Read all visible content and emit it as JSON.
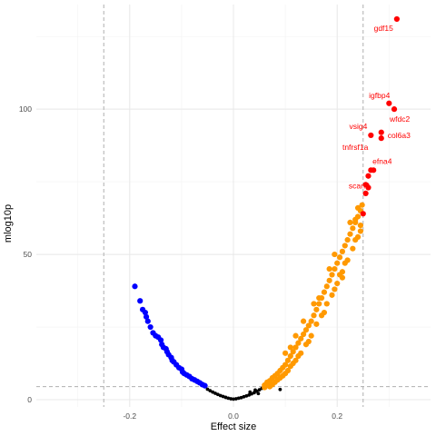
{
  "colors": {
    "neutral": "#000000",
    "down": "#0000ff",
    "up": "#ff9900",
    "top": "#ff0000",
    "grid_major": "#e8e8e8",
    "grid_minor": "#f3f3f3",
    "threshold": "#b0b0b0"
  },
  "chart_data": {
    "type": "scatter",
    "title": "",
    "xlabel": "Effect size",
    "ylabel": "mlog10p",
    "xlim": [
      -0.38,
      0.38
    ],
    "ylim": [
      -2.5,
      136
    ],
    "x_ticks": [
      -0.2,
      0.0,
      0.2
    ],
    "x_tick_labels": [
      "-0.2",
      "0.0",
      "0.2"
    ],
    "y_ticks": [
      0,
      50,
      100
    ],
    "y_tick_labels": [
      "0",
      "50",
      "100"
    ],
    "grid": true,
    "legend": "none",
    "thresholds": {
      "x": [
        -0.25,
        0.25
      ],
      "y": [
        4.5
      ]
    },
    "groups": [
      {
        "name": "down",
        "color_key": "down",
        "points": [
          [
            -0.19,
            39
          ],
          [
            -0.18,
            34
          ],
          [
            -0.175,
            31
          ],
          [
            -0.17,
            30
          ],
          [
            -0.168,
            28.5
          ],
          [
            -0.165,
            27
          ],
          [
            -0.16,
            25
          ],
          [
            -0.155,
            23
          ],
          [
            -0.15,
            22
          ],
          [
            -0.145,
            21.5
          ],
          [
            -0.14,
            20.5
          ],
          [
            -0.138,
            19
          ],
          [
            -0.135,
            18
          ],
          [
            -0.13,
            17.5
          ],
          [
            -0.128,
            16.5
          ],
          [
            -0.125,
            15.5
          ],
          [
            -0.12,
            14.5
          ],
          [
            -0.118,
            13.5
          ],
          [
            -0.115,
            13
          ],
          [
            -0.11,
            12
          ],
          [
            -0.105,
            11
          ],
          [
            -0.1,
            10.5
          ],
          [
            -0.098,
            9.5
          ],
          [
            -0.095,
            9
          ],
          [
            -0.09,
            8.5
          ],
          [
            -0.085,
            8
          ],
          [
            -0.08,
            7.2
          ],
          [
            -0.075,
            6.8
          ],
          [
            -0.07,
            6.3
          ],
          [
            -0.065,
            5.8
          ],
          [
            -0.06,
            5.2
          ],
          [
            -0.055,
            4.8
          ]
        ]
      },
      {
        "name": "neutral",
        "color_key": "neutral",
        "points": [
          [
            -0.05,
            3.6
          ],
          [
            -0.045,
            3.1
          ],
          [
            -0.04,
            2.6
          ],
          [
            -0.035,
            2.2
          ],
          [
            -0.03,
            1.8
          ],
          [
            -0.025,
            1.4
          ],
          [
            -0.02,
            1.1
          ],
          [
            -0.015,
            0.8
          ],
          [
            -0.01,
            0.5
          ],
          [
            -0.005,
            0.3
          ],
          [
            0.0,
            0.2
          ],
          [
            0.005,
            0.3
          ],
          [
            0.01,
            0.5
          ],
          [
            0.015,
            0.7
          ],
          [
            0.02,
            1.0
          ],
          [
            0.025,
            1.3
          ],
          [
            0.03,
            1.6
          ],
          [
            0.035,
            2.0
          ],
          [
            0.04,
            2.4
          ],
          [
            0.045,
            2.9
          ],
          [
            0.05,
            3.4
          ],
          [
            0.055,
            3.9
          ],
          [
            0.032,
            2.6
          ],
          [
            0.042,
            3.3
          ],
          [
            0.048,
            2.1
          ],
          [
            0.09,
            3.5
          ]
        ]
      },
      {
        "name": "up",
        "color_key": "up",
        "points": [
          [
            0.06,
            5.0
          ],
          [
            0.065,
            5.5
          ],
          [
            0.07,
            6.5
          ],
          [
            0.075,
            7.5
          ],
          [
            0.08,
            8.2
          ],
          [
            0.085,
            9.0
          ],
          [
            0.09,
            10.0
          ],
          [
            0.095,
            11.0
          ],
          [
            0.1,
            12.0
          ],
          [
            0.105,
            13.5
          ],
          [
            0.11,
            15.0
          ],
          [
            0.115,
            16.5
          ],
          [
            0.12,
            18.0
          ],
          [
            0.125,
            19.5
          ],
          [
            0.13,
            21.0
          ],
          [
            0.135,
            22.5
          ],
          [
            0.14,
            24.0
          ],
          [
            0.145,
            25.5
          ],
          [
            0.15,
            27.0
          ],
          [
            0.155,
            29.0
          ],
          [
            0.16,
            31.0
          ],
          [
            0.165,
            33.0
          ],
          [
            0.17,
            35.0
          ],
          [
            0.175,
            37.0
          ],
          [
            0.18,
            39.0
          ],
          [
            0.185,
            41.0
          ],
          [
            0.19,
            43.0
          ],
          [
            0.195,
            45.0
          ],
          [
            0.2,
            47.0
          ],
          [
            0.205,
            49.0
          ],
          [
            0.21,
            51.0
          ],
          [
            0.215,
            53.0
          ],
          [
            0.22,
            55.0
          ],
          [
            0.225,
            57.0
          ],
          [
            0.23,
            59.0
          ],
          [
            0.235,
            61.0
          ],
          [
            0.24,
            63.0
          ],
          [
            0.245,
            65.0
          ],
          [
            0.248,
            67.0
          ],
          [
            0.07,
            4.5
          ],
          [
            0.08,
            6.0
          ],
          [
            0.09,
            7.5
          ],
          [
            0.1,
            9.0
          ],
          [
            0.11,
            11.5
          ],
          [
            0.12,
            13.5
          ],
          [
            0.13,
            16.0
          ],
          [
            0.14,
            19.0
          ],
          [
            0.15,
            22.0
          ],
          [
            0.16,
            26.0
          ],
          [
            0.17,
            29.0
          ],
          [
            0.18,
            33.0
          ],
          [
            0.19,
            36.0
          ],
          [
            0.2,
            40.0
          ],
          [
            0.21,
            44.0
          ],
          [
            0.22,
            48.0
          ],
          [
            0.23,
            52.0
          ],
          [
            0.24,
            56.0
          ],
          [
            0.1,
            16.0
          ],
          [
            0.11,
            18.0
          ],
          [
            0.12,
            22.0
          ],
          [
            0.135,
            27.0
          ],
          [
            0.155,
            33.0
          ],
          [
            0.165,
            35.0
          ],
          [
            0.185,
            45.0
          ],
          [
            0.195,
            50.0
          ],
          [
            0.205,
            43.0
          ],
          [
            0.215,
            47.0
          ],
          [
            0.225,
            61.0
          ],
          [
            0.235,
            55.0
          ],
          [
            0.245,
            58.0
          ],
          [
            0.06,
            4.2
          ],
          [
            0.065,
            6.0
          ],
          [
            0.075,
            5.2
          ],
          [
            0.085,
            6.8
          ],
          [
            0.095,
            8.2
          ],
          [
            0.105,
            10.0
          ],
          [
            0.115,
            12.5
          ],
          [
            0.125,
            15.0
          ],
          [
            0.145,
            20.0
          ],
          [
            0.175,
            30.0
          ],
          [
            0.195,
            38.0
          ],
          [
            0.21,
            42.0
          ],
          [
            0.245,
            60.0
          ],
          [
            0.235,
            62.0
          ],
          [
            0.24,
            66.0
          ]
        ]
      },
      {
        "name": "top",
        "color_key": "top",
        "points": [
          [
            0.315,
            131
          ],
          [
            0.3,
            102
          ],
          [
            0.31,
            100
          ],
          [
            0.265,
            91
          ],
          [
            0.285,
            92
          ],
          [
            0.285,
            90
          ],
          [
            0.265,
            79
          ],
          [
            0.27,
            79
          ],
          [
            0.26,
            77
          ],
          [
            0.255,
            74
          ],
          [
            0.26,
            73
          ],
          [
            0.255,
            71
          ],
          [
            0.25,
            64
          ]
        ]
      }
    ],
    "annotations": [
      {
        "label": "gdf15",
        "x": 0.315,
        "y": 131
      },
      {
        "label": "igfbp4",
        "x": 0.3,
        "y": 102
      },
      {
        "label": "wfdc2",
        "x": 0.31,
        "y": 100
      },
      {
        "label": "vsig4",
        "x": 0.265,
        "y": 91
      },
      {
        "label": "col6a3",
        "x": 0.285,
        "y": 91
      },
      {
        "label": "tnfrsf1a",
        "x": 0.265,
        "y": 91
      },
      {
        "label": "efna4",
        "x": 0.27,
        "y": 79
      },
      {
        "label": "scarf2",
        "x": 0.26,
        "y": 77
      }
    ]
  }
}
